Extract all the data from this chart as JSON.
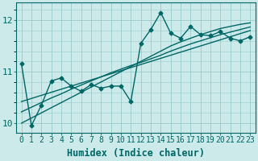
{
  "xlabel": "Humidex (Indice chaleur)",
  "ylabel": "",
  "xlim": [
    -0.5,
    23.5
  ],
  "ylim": [
    9.82,
    12.35
  ],
  "bg_color": "#cceaea",
  "line_color": "#006666",
  "grid_color": "#99cccc",
  "x": [
    0,
    1,
    2,
    3,
    4,
    5,
    6,
    7,
    8,
    9,
    10,
    11,
    12,
    13,
    14,
    15,
    16,
    17,
    18,
    19,
    20,
    21,
    22,
    23
  ],
  "y_main": [
    11.15,
    9.95,
    10.35,
    10.82,
    10.88,
    10.72,
    10.62,
    10.75,
    10.68,
    10.72,
    10.72,
    10.42,
    11.55,
    11.82,
    12.15,
    11.75,
    11.65,
    11.88,
    11.72,
    11.7,
    11.78,
    11.65,
    11.6,
    11.68
  ],
  "y_linear1": [
    10.42,
    10.48,
    10.54,
    10.6,
    10.66,
    10.72,
    10.78,
    10.84,
    10.9,
    10.96,
    11.02,
    11.08,
    11.14,
    11.2,
    11.26,
    11.32,
    11.38,
    11.44,
    11.5,
    11.56,
    11.62,
    11.68,
    11.74,
    11.8
  ],
  "y_linear2": [
    10.0,
    10.1,
    10.2,
    10.3,
    10.4,
    10.5,
    10.6,
    10.7,
    10.8,
    10.9,
    11.0,
    11.1,
    11.2,
    11.3,
    11.4,
    11.5,
    11.58,
    11.65,
    11.72,
    11.78,
    11.84,
    11.88,
    11.92,
    11.95
  ],
  "y_linear3": [
    10.22,
    10.31,
    10.4,
    10.49,
    10.57,
    10.66,
    10.74,
    10.82,
    10.9,
    10.98,
    11.05,
    11.12,
    11.18,
    11.25,
    11.32,
    11.4,
    11.47,
    11.54,
    11.6,
    11.66,
    11.72,
    11.77,
    11.82,
    11.87
  ],
  "yticks": [
    10,
    11,
    12
  ],
  "xticks": [
    0,
    1,
    2,
    3,
    4,
    5,
    6,
    7,
    8,
    9,
    10,
    11,
    12,
    13,
    14,
    15,
    16,
    17,
    18,
    19,
    20,
    21,
    22,
    23
  ],
  "xlabel_fontsize": 8.5,
  "tick_fontsize": 7,
  "marker": "D",
  "markersize": 2.5,
  "linewidth": 1.0
}
